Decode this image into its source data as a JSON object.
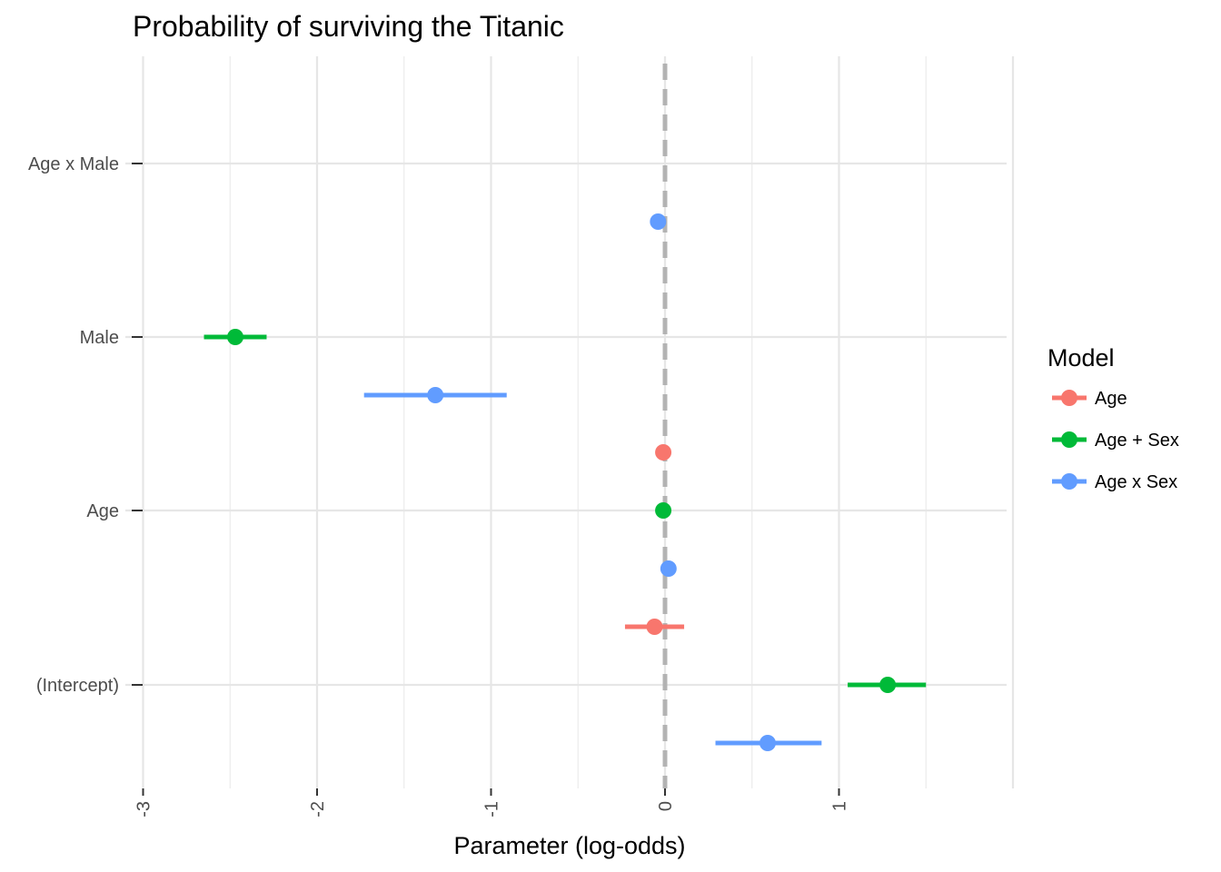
{
  "chart_data": {
    "type": "coefficient-plot",
    "title": "Probability of surviving the Titanic",
    "xlabel": "Parameter (log-odds)",
    "ylabel": "",
    "xlim": [
      -3,
      2
    ],
    "x_ticks": [
      -3,
      -2,
      -1,
      0,
      1
    ],
    "x_tick_labels": [
      "-3",
      "-2",
      "-1",
      "0",
      "1"
    ],
    "reference_line": {
      "x": 0,
      "style": "dashed",
      "color": "#b3b3b3"
    },
    "grid": true,
    "categories": [
      "(Intercept)",
      "Age",
      "Male",
      "Age x Male"
    ],
    "legend": {
      "title": "Model",
      "position": "right"
    },
    "series": [
      {
        "name": "Age",
        "color": "#F8766D",
        "points": [
          {
            "term": "(Intercept)",
            "estimate": -0.06,
            "low": -0.23,
            "high": 0.11
          },
          {
            "term": "Age",
            "estimate": -0.01,
            "low": -0.02,
            "high": 0.0
          }
        ]
      },
      {
        "name": "Age + Sex",
        "color": "#00BA38",
        "points": [
          {
            "term": "(Intercept)",
            "estimate": 1.28,
            "low": 1.05,
            "high": 1.5
          },
          {
            "term": "Age",
            "estimate": -0.01,
            "low": -0.02,
            "high": 0.0
          },
          {
            "term": "Male",
            "estimate": -2.47,
            "low": -2.65,
            "high": -2.29
          }
        ]
      },
      {
        "name": "Age x Sex",
        "color": "#619CFF",
        "points": [
          {
            "term": "(Intercept)",
            "estimate": 0.59,
            "low": 0.29,
            "high": 0.9
          },
          {
            "term": "Age",
            "estimate": 0.02,
            "low": 0.01,
            "high": 0.03
          },
          {
            "term": "Male",
            "estimate": -1.32,
            "low": -1.73,
            "high": -0.91
          },
          {
            "term": "Age x Male",
            "estimate": -0.04,
            "low": -0.06,
            "high": -0.02
          }
        ]
      }
    ]
  }
}
